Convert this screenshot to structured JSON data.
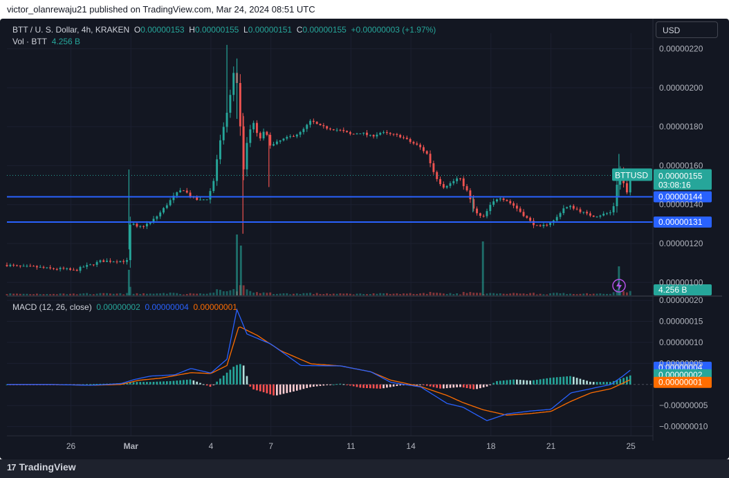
{
  "published": "victor_olanrewaju21 published on TradingView.com, Mar 24, 2024 08:51 UTC",
  "brand": "TradingView",
  "currency_button": "USD",
  "header": {
    "symbol": "BTT / U. S. Dollar, 4h, KRAKEN",
    "o_label": "O",
    "o_value": "0.00000153",
    "h_label": "H",
    "h_value": "0.00000155",
    "l_label": "L",
    "l_value": "0.00000151",
    "c_label": "C",
    "c_value": "0.00000155",
    "change": "+0.00000003 (+1.97%)",
    "vol_label": "Vol · BTT",
    "vol_value": "4.256 B",
    "macd_label": "MACD (12, 26, close)",
    "macd_hist": "0.00000002",
    "macd_line": "0.00000004",
    "macd_signal": "0.00000001"
  },
  "colors": {
    "up": "#26a69a",
    "down": "#ef5350",
    "hline": "#2962ff",
    "macd": "#2962ff",
    "signal": "#ff6d00",
    "bg": "#131722"
  },
  "chart_data": [
    {
      "type": "candlestick",
      "symbol": "BTT / U. S. Dollar, 4h, KRAKEN",
      "price_axis_ticks": [
        "0.00000220",
        "0.00000200",
        "0.00000180",
        "0.00000160",
        "0.00000140",
        "0.00000120",
        "0.00000100"
      ],
      "ylim": [
        9.3e-07,
        2.28e-06
      ],
      "x_ticks": [
        {
          "label": "26",
          "day": 26
        },
        {
          "label": "Mar",
          "day": 29
        },
        {
          "label": "4",
          "day": 33
        },
        {
          "label": "7",
          "day": 36
        },
        {
          "label": "11",
          "day": 40
        },
        {
          "label": "14",
          "day": 43
        },
        {
          "label": "18",
          "day": 47
        },
        {
          "label": "21",
          "day": 50
        },
        {
          "label": "25",
          "day": 54
        }
      ],
      "x_range_days": [
        22.8,
        55.1
      ],
      "last_price_label": {
        "symbol": "BTTUSD",
        "price": "0.00000155",
        "countdown": "03:08:16"
      },
      "horizontal_lines": [
        {
          "value": 1.44e-06,
          "label": "0.00000144"
        },
        {
          "value": 1.31e-06,
          "label": "0.00000131"
        }
      ],
      "volume_label": "4.256 B",
      "close_path": [
        [
          22.8,
          1.09
        ],
        [
          23.5,
          1.08
        ],
        [
          24.2,
          1.08
        ],
        [
          25,
          1.07
        ],
        [
          25.6,
          1.07
        ],
        [
          26.2,
          1.06
        ],
        [
          26.6,
          1.08
        ],
        [
          27,
          1.09
        ],
        [
          27.5,
          1.11
        ],
        [
          28,
          1.11
        ],
        [
          28.4,
          1.11
        ],
        [
          28.8,
          1.11
        ],
        [
          29.0,
          1.33
        ],
        [
          29.2,
          1.28
        ],
        [
          29.6,
          1.29
        ],
        [
          30.0,
          1.31
        ],
        [
          30.4,
          1.35
        ],
        [
          30.8,
          1.4
        ],
        [
          31.2,
          1.45
        ],
        [
          31.6,
          1.48
        ],
        [
          32.0,
          1.44
        ],
        [
          32.4,
          1.42
        ],
        [
          32.8,
          1.43
        ],
        [
          33.1,
          1.5
        ],
        [
          33.4,
          1.7
        ],
        [
          33.7,
          1.82
        ],
        [
          34.0,
          1.98
        ],
        [
          34.2,
          2.12
        ],
        [
          34.4,
          1.93
        ],
        [
          34.6,
          1.55
        ],
        [
          34.8,
          1.72
        ],
        [
          35.1,
          1.83
        ],
        [
          35.4,
          1.73
        ],
        [
          35.7,
          1.78
        ],
        [
          36.0,
          1.7
        ],
        [
          36.5,
          1.73
        ],
        [
          37.0,
          1.75
        ],
        [
          37.5,
          1.77
        ],
        [
          38.0,
          1.83
        ],
        [
          38.5,
          1.8
        ],
        [
          39.0,
          1.79
        ],
        [
          39.5,
          1.78
        ],
        [
          40.0,
          1.76
        ],
        [
          40.5,
          1.77
        ],
        [
          41.0,
          1.75
        ],
        [
          41.5,
          1.77
        ],
        [
          42.0,
          1.76
        ],
        [
          42.5,
          1.75
        ],
        [
          43.0,
          1.72
        ],
        [
          43.4,
          1.7
        ],
        [
          43.8,
          1.66
        ],
        [
          44.2,
          1.55
        ],
        [
          44.6,
          1.49
        ],
        [
          45.0,
          1.51
        ],
        [
          45.4,
          1.54
        ],
        [
          45.8,
          1.47
        ],
        [
          46.2,
          1.36
        ],
        [
          46.6,
          1.33
        ],
        [
          47.0,
          1.4
        ],
        [
          47.4,
          1.44
        ],
        [
          47.8,
          1.42
        ],
        [
          48.2,
          1.39
        ],
        [
          48.6,
          1.35
        ],
        [
          49.0,
          1.31
        ],
        [
          49.4,
          1.28
        ],
        [
          49.8,
          1.3
        ],
        [
          50.2,
          1.32
        ],
        [
          50.6,
          1.38
        ],
        [
          51.0,
          1.39
        ],
        [
          51.4,
          1.37
        ],
        [
          51.8,
          1.35
        ],
        [
          52.2,
          1.34
        ],
        [
          52.6,
          1.35
        ],
        [
          53.0,
          1.36
        ],
        [
          53.2,
          1.41
        ],
        [
          53.4,
          1.6
        ],
        [
          53.6,
          1.52
        ],
        [
          53.8,
          1.46
        ],
        [
          54.0,
          1.55
        ]
      ],
      "spikes": [
        {
          "day": 33.8,
          "high": 2.22,
          "low": 1.77
        },
        {
          "day": 34.3,
          "high": 2.15,
          "low": 1.84
        },
        {
          "day": 34.6,
          "high": 1.87,
          "low": 1.25
        },
        {
          "day": 35.9,
          "high": 1.76,
          "low": 1.49
        },
        {
          "day": 28.9,
          "high": 1.58,
          "low": 1.17
        },
        {
          "day": 46.1,
          "high": 1.44,
          "low": 1.36
        },
        {
          "day": 53.4,
          "high": 1.66,
          "low": 1.44
        }
      ],
      "volume_spikes": [
        {
          "day": 28.9,
          "value": 0.37
        },
        {
          "day": 34.5,
          "value": 0.72
        },
        {
          "day": 34.3,
          "value": 0.88
        },
        {
          "day": 46.6,
          "value": 0.78
        },
        {
          "day": 53.4,
          "value": 0.42
        }
      ]
    },
    {
      "type": "macd",
      "label": "MACD (12, 26, close)",
      "axis_ticks": [
        "0.00000020",
        "0.00000015",
        "0.00000010",
        "0.00000005",
        "−0.00000005",
        "−0.00000010"
      ],
      "ylim": [
        -1.22e-07,
        2.1e-07
      ],
      "macd_line": [
        [
          22.8,
          0.0
        ],
        [
          25,
          0.0
        ],
        [
          27,
          -0.2
        ],
        [
          28.5,
          0.2
        ],
        [
          29.2,
          1.2
        ],
        [
          30,
          2.0
        ],
        [
          31.2,
          2.3
        ],
        [
          32,
          3.8
        ],
        [
          33,
          2.7
        ],
        [
          33.8,
          6.0
        ],
        [
          34.3,
          17.8
        ],
        [
          34.8,
          12.0
        ],
        [
          36,
          9.6
        ],
        [
          37.5,
          4.5
        ],
        [
          39.5,
          4.4
        ],
        [
          41,
          3.0
        ],
        [
          42,
          0.5
        ],
        [
          43.5,
          -0.6
        ],
        [
          44.8,
          -4.5
        ],
        [
          45.6,
          -5.4
        ],
        [
          46.2,
          -7.0
        ],
        [
          46.8,
          -8.6
        ],
        [
          47.8,
          -7.0
        ],
        [
          49,
          -6.3
        ],
        [
          50,
          -5.9
        ],
        [
          51,
          -2.0
        ],
        [
          52,
          -1.0
        ],
        [
          53,
          0.0
        ],
        [
          53.6,
          2.0
        ],
        [
          54.0,
          3.5
        ]
      ],
      "signal_line": [
        [
          22.8,
          0.0
        ],
        [
          25,
          0.0
        ],
        [
          27,
          -0.2
        ],
        [
          28.5,
          0.0
        ],
        [
          29.4,
          1.0
        ],
        [
          30.5,
          1.5
        ],
        [
          32,
          2.8
        ],
        [
          33,
          2.6
        ],
        [
          33.8,
          4.5
        ],
        [
          34.4,
          13.8
        ],
        [
          35.3,
          11.7
        ],
        [
          36.5,
          8.0
        ],
        [
          38,
          4.9
        ],
        [
          39.5,
          4.4
        ],
        [
          41,
          3.0
        ],
        [
          42,
          1.0
        ],
        [
          43.5,
          -0.5
        ],
        [
          44.8,
          -2.6
        ],
        [
          45.6,
          -4.3
        ],
        [
          46.6,
          -6.0
        ],
        [
          47.8,
          -7.3
        ],
        [
          49,
          -6.9
        ],
        [
          50,
          -6.4
        ],
        [
          51,
          -4.0
        ],
        [
          52,
          -2.0
        ],
        [
          53,
          -1.0
        ],
        [
          53.6,
          0.3
        ],
        [
          54.0,
          1.2
        ]
      ],
      "histogram": [
        [
          22.8,
          0.0
        ],
        [
          26,
          -0.1
        ],
        [
          27,
          0.1
        ],
        [
          28,
          0.2
        ],
        [
          28.8,
          0.4
        ],
        [
          29.3,
          0.6
        ],
        [
          30,
          0.6
        ],
        [
          31,
          0.8
        ],
        [
          32,
          1.2
        ],
        [
          33,
          -0.6
        ],
        [
          34.2,
          4.5
        ],
        [
          34.6,
          5.0
        ],
        [
          35,
          -1.0
        ],
        [
          35.6,
          -1.8
        ],
        [
          36.2,
          -2.7
        ],
        [
          37.2,
          -1.6
        ],
        [
          38,
          -0.6
        ],
        [
          39.5,
          0.2
        ],
        [
          40.5,
          -0.8
        ],
        [
          41.5,
          -1.0
        ],
        [
          42.5,
          -0.2
        ],
        [
          43.5,
          0.0
        ],
        [
          44.5,
          -1.0
        ],
        [
          45.5,
          -0.6
        ],
        [
          46.2,
          -1.2
        ],
        [
          46.8,
          -0.5
        ],
        [
          47.3,
          0.8
        ],
        [
          48.2,
          1.2
        ],
        [
          49,
          0.9
        ],
        [
          50,
          1.6
        ],
        [
          51,
          2.0
        ],
        [
          52,
          0.6
        ],
        [
          53,
          0.6
        ],
        [
          53.6,
          1.5
        ],
        [
          54.0,
          2.2
        ]
      ]
    }
  ]
}
